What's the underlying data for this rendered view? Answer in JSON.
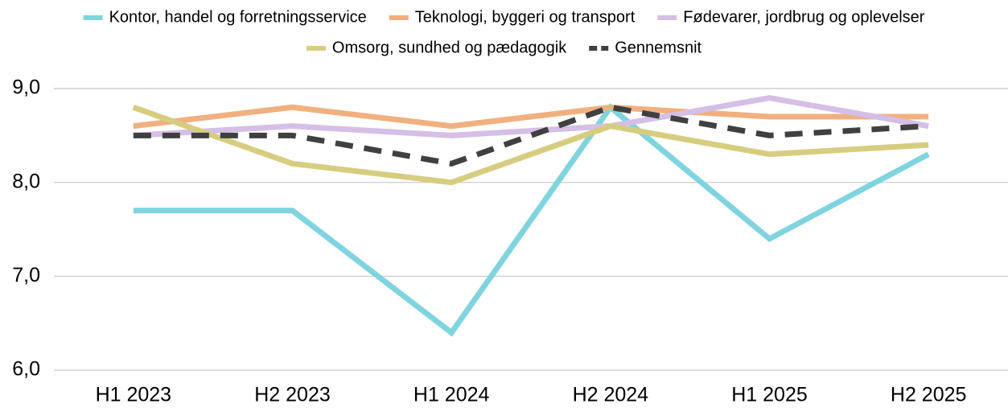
{
  "chart_data": {
    "type": "line",
    "categories": [
      "H1 2023",
      "H2 2023",
      "H1 2024",
      "H2 2024",
      "H1 2025",
      "H2 2025"
    ],
    "series": [
      {
        "name": "Kontor, handel og forretningsservice",
        "color": "#80d4de",
        "values": [
          7.7,
          7.7,
          6.4,
          8.8,
          7.4,
          8.3
        ]
      },
      {
        "name": "Teknologi, byggeri og transport",
        "color": "#f0b080",
        "values": [
          8.6,
          8.8,
          8.6,
          8.8,
          8.7,
          8.7
        ]
      },
      {
        "name": "Fødevarer, jordbrug og oplevelser",
        "color": "#d4bfe6",
        "values": [
          8.5,
          8.6,
          8.5,
          8.6,
          8.9,
          8.6
        ]
      },
      {
        "name": "Omsorg, sundhed og pædagogik",
        "color": "#d6cd80",
        "values": [
          8.8,
          8.2,
          8.0,
          8.6,
          8.3,
          8.4
        ]
      },
      {
        "name": "Gennemsnit",
        "color": "#404040",
        "dashed": true,
        "values": [
          8.5,
          8.5,
          8.2,
          8.8,
          8.5,
          8.6
        ]
      }
    ],
    "ylim": [
      6,
      9
    ],
    "yticks": [
      {
        "value": 6,
        "label": "6,0"
      },
      {
        "value": 7,
        "label": "7,0"
      },
      {
        "value": 8,
        "label": "8,0"
      },
      {
        "value": 9,
        "label": "9,0"
      }
    ],
    "grid": true,
    "legend": "top"
  }
}
